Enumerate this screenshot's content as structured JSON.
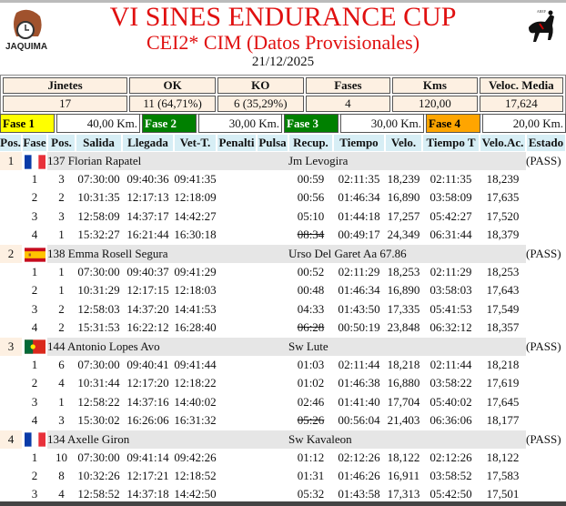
{
  "header": {
    "title": "VI SINES ENDURANCE CUP",
    "subtitle": "CEI2* CIM (Datos Provisionales)",
    "date": "21/12/2025",
    "logo_left": "JAQUIMA",
    "logo_right": "AREF"
  },
  "stats": {
    "headers": [
      "Jinetes",
      "OK",
      "KO",
      "Fases",
      "Kms",
      "Veloc. Media"
    ],
    "values": [
      "17",
      "11 (64,71%)",
      "6 (35,29%)",
      "4",
      "120,00",
      "17,624"
    ]
  },
  "fases": [
    {
      "label": "Fase 1",
      "km": "40,00 Km.",
      "color": "#ffff00",
      "text": "#000"
    },
    {
      "label": "Fase 2",
      "km": "30,00 Km.",
      "color": "#008000",
      "text": "#fff"
    },
    {
      "label": "Fase 3",
      "km": "30,00 Km.",
      "color": "#008000",
      "text": "#fff"
    },
    {
      "label": "Fase 4",
      "km": "20,00 Km.",
      "color": "#ffa500",
      "text": "#000"
    }
  ],
  "columns": [
    "Pos.",
    "Fase",
    "Pos.",
    "Salida",
    "Llegada",
    "Vet-T.",
    "Penalti",
    "Pulsa",
    "Recup.",
    "Tiempo",
    "Velo.",
    "Tiempo T",
    "Velo.Ac.",
    "Estado"
  ],
  "riders": [
    {
      "pos": "1",
      "flag": "france",
      "name": "137 Florian Rapatel",
      "horse": "Jm Levogira",
      "estado": "(PASS)",
      "phases": [
        [
          "1",
          "3",
          "07:30:00",
          "09:40:36",
          "09:41:35",
          "00:59",
          "02:11:35",
          "18,239",
          "02:11:35",
          "18,239"
        ],
        [
          "2",
          "2",
          "10:31:35",
          "12:17:13",
          "12:18:09",
          "00:56",
          "01:46:34",
          "16,890",
          "03:58:09",
          "17,635"
        ],
        [
          "3",
          "3",
          "12:58:09",
          "14:37:17",
          "14:42:27",
          "05:10",
          "01:44:18",
          "17,257",
          "05:42:27",
          "17,520"
        ],
        [
          "4",
          "1",
          "15:32:27",
          "16:21:44",
          "16:30:18",
          "08:34",
          "00:49:17",
          "24,349",
          "06:31:44",
          "18,379"
        ]
      ]
    },
    {
      "pos": "2",
      "flag": "spain",
      "name": "138 Emma Rosell Segura",
      "horse": "Urso Del Garet Aa 67.86",
      "estado": "(PASS)",
      "phases": [
        [
          "1",
          "1",
          "07:30:00",
          "09:40:37",
          "09:41:29",
          "00:52",
          "02:11:29",
          "18,253",
          "02:11:29",
          "18,253"
        ],
        [
          "2",
          "1",
          "10:31:29",
          "12:17:15",
          "12:18:03",
          "00:48",
          "01:46:34",
          "16,890",
          "03:58:03",
          "17,643"
        ],
        [
          "3",
          "2",
          "12:58:03",
          "14:37:20",
          "14:41:53",
          "04:33",
          "01:43:50",
          "17,335",
          "05:41:53",
          "17,549"
        ],
        [
          "4",
          "2",
          "15:31:53",
          "16:22:12",
          "16:28:40",
          "06:28",
          "00:50:19",
          "23,848",
          "06:32:12",
          "18,357"
        ]
      ]
    },
    {
      "pos": "3",
      "flag": "portugal",
      "name": "144 Antonio Lopes Avo",
      "horse": "Sw Lute",
      "estado": "(PASS)",
      "phases": [
        [
          "1",
          "6",
          "07:30:00",
          "09:40:41",
          "09:41:44",
          "01:03",
          "02:11:44",
          "18,218",
          "02:11:44",
          "18,218"
        ],
        [
          "2",
          "4",
          "10:31:44",
          "12:17:20",
          "12:18:22",
          "01:02",
          "01:46:38",
          "16,880",
          "03:58:22",
          "17,619"
        ],
        [
          "3",
          "1",
          "12:58:22",
          "14:37:16",
          "14:40:02",
          "02:46",
          "01:41:40",
          "17,704",
          "05:40:02",
          "17,645"
        ],
        [
          "4",
          "3",
          "15:30:02",
          "16:26:06",
          "16:31:32",
          "05:26",
          "00:56:04",
          "21,403",
          "06:36:06",
          "18,177"
        ]
      ]
    },
    {
      "pos": "4",
      "flag": "france",
      "name": "134 Axelle Giron",
      "horse": "Sw Kavaleon",
      "estado": "(PASS)",
      "phases": [
        [
          "1",
          "10",
          "07:30:00",
          "09:41:14",
          "09:42:26",
          "01:12",
          "02:12:26",
          "18,122",
          "02:12:26",
          "18,122"
        ],
        [
          "2",
          "8",
          "10:32:26",
          "12:17:21",
          "12:18:52",
          "01:31",
          "01:46:26",
          "16,911",
          "03:58:52",
          "17,583"
        ],
        [
          "3",
          "4",
          "12:58:52",
          "14:37:18",
          "14:42:50",
          "05:32",
          "01:43:58",
          "17,313",
          "05:42:50",
          "17,501"
        ]
      ]
    }
  ]
}
